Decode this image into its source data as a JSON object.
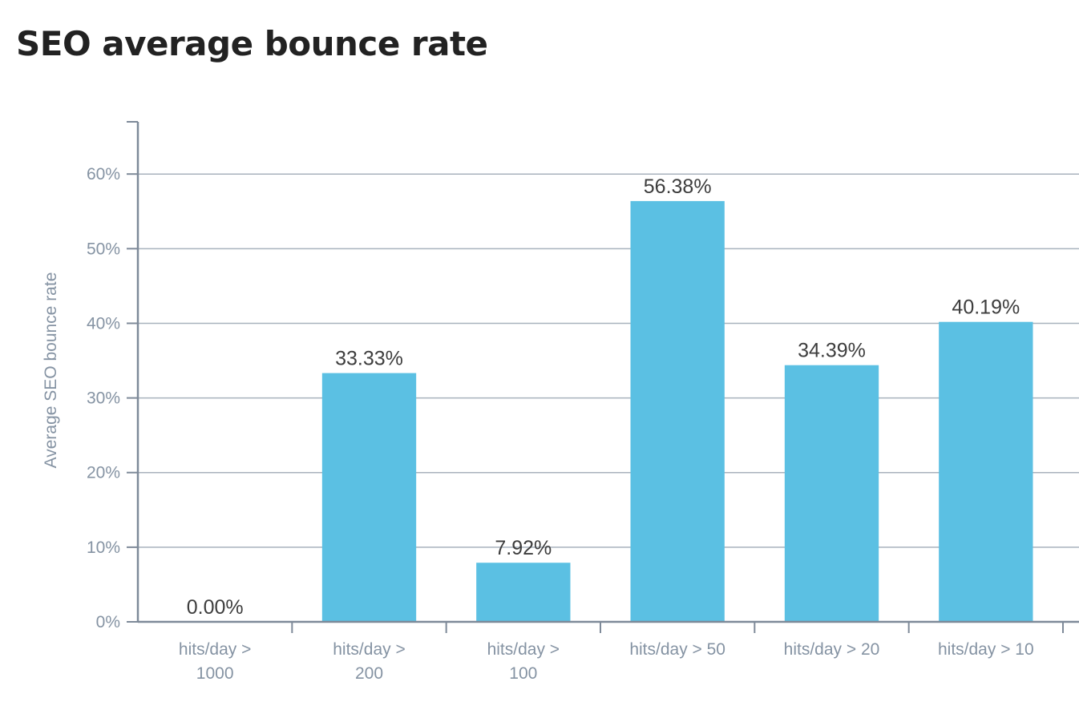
{
  "chart_data": {
    "type": "bar",
    "title": "SEO average bounce rate",
    "xlabel": "",
    "ylabel": "Average SEO bounce rate",
    "categories": [
      [
        "hits/day >",
        "1000"
      ],
      [
        "hits/day >",
        "200"
      ],
      [
        "hits/day >",
        "100"
      ],
      [
        "hits/day > 50"
      ],
      [
        "hits/day > 20"
      ],
      [
        "hits/day > 10"
      ]
    ],
    "values": [
      0.0,
      33.33,
      7.92,
      56.38,
      34.39,
      40.19
    ],
    "data_labels": [
      "0.00%",
      "33.33%",
      "7.92%",
      "56.38%",
      "34.39%",
      "40.19%"
    ],
    "yticks": [
      0,
      10,
      20,
      30,
      40,
      50,
      60
    ],
    "ytick_labels": [
      "0%",
      "10%",
      "20%",
      "30%",
      "40%",
      "50%",
      "60%"
    ],
    "ylim": [
      0,
      67
    ],
    "grid": true,
    "legend": "none",
    "colors": {
      "bar": "#5bc0e3",
      "grid": "#a8b2bd",
      "axis": "#7e8a99",
      "tick_text": "#8593a3",
      "label_text": "#3d3d3d",
      "title_text": "#222222"
    }
  }
}
